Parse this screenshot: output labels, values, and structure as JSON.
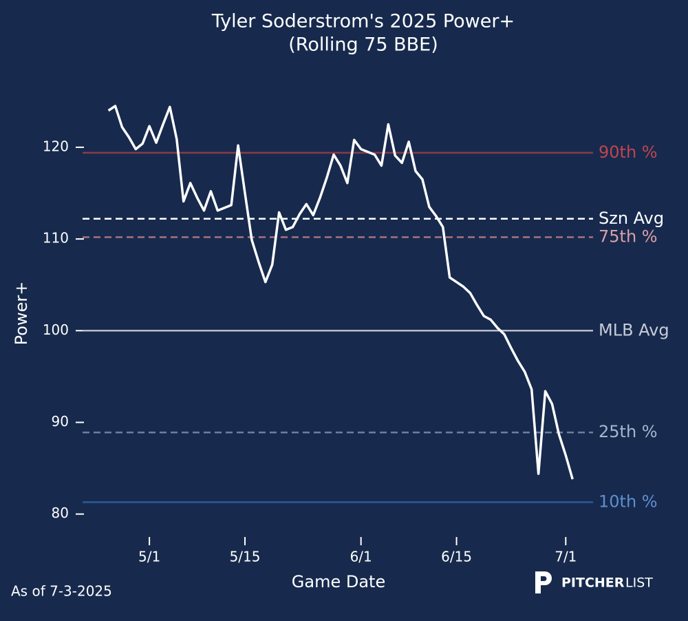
{
  "chart_data": {
    "type": "line",
    "title": "Tyler Soderstrom's 2025 Power+",
    "subtitle": "(Rolling 75 BBE)",
    "x_label": "Game Date",
    "y_label": "Power+",
    "footnote": "As of 7-3-2025",
    "logo": {
      "bold": "PITCHER",
      "light": "LIST"
    },
    "x": [
      "4/25",
      "4/26",
      "4/27",
      "4/28",
      "4/29",
      "4/30",
      "5/1",
      "5/2",
      "5/3",
      "5/4",
      "5/5",
      "5/6",
      "5/7",
      "5/8",
      "5/9",
      "5/10",
      "5/11",
      "5/13",
      "5/14",
      "5/15",
      "5/16",
      "5/17",
      "5/18",
      "5/19",
      "5/20",
      "5/21",
      "5/22",
      "5/23",
      "5/24",
      "5/25",
      "5/26",
      "5/27",
      "5/28",
      "5/29",
      "5/30",
      "5/31",
      "6/1",
      "6/2",
      "6/3",
      "6/4",
      "6/5",
      "6/6",
      "6/7",
      "6/8",
      "6/9",
      "6/10",
      "6/11",
      "6/12",
      "6/13",
      "6/14",
      "6/15",
      "6/16",
      "6/17",
      "6/18",
      "6/19",
      "6/20",
      "6/21",
      "6/22",
      "6/23",
      "6/24",
      "6/25",
      "6/26",
      "6/27",
      "6/28",
      "6/29",
      "6/30",
      "7/1",
      "7/2"
    ],
    "series": [
      {
        "name": "Power+",
        "color": "#ffffff",
        "values": [
          124.0,
          124.5,
          122.2,
          121.1,
          119.8,
          120.4,
          122.3,
          120.5,
          122.5,
          124.4,
          120.9,
          114.1,
          116.1,
          114.5,
          113.1,
          115.2,
          113.1,
          113.7,
          120.2,
          115.0,
          109.9,
          107.5,
          105.3,
          107.2,
          112.9,
          111.0,
          111.3,
          112.7,
          113.8,
          112.6,
          114.5,
          116.7,
          119.2,
          118.0,
          116.1,
          120.8,
          119.8,
          119.5,
          119.2,
          118.0,
          122.5,
          119.1,
          118.3,
          120.6,
          117.4,
          116.5,
          113.5,
          112.5,
          111.3,
          105.8,
          105.3,
          104.8,
          104.1,
          102.8,
          101.6,
          101.2,
          100.3,
          99.6,
          98.1,
          96.7,
          95.5,
          93.6,
          84.4,
          93.4,
          92.0,
          88.7,
          86.4,
          83.8
        ]
      }
    ],
    "references": [
      {
        "name": "90th %",
        "value": 119.4,
        "color": "#8b3a4a",
        "label_color": "#c0454f",
        "dashed": false
      },
      {
        "name": "Szn Avg",
        "value": 112.2,
        "color": "#ffffff",
        "label_color": "#ffffff",
        "dashed": true
      },
      {
        "name": "75th %",
        "value": 110.2,
        "color": "#a9737f",
        "label_color": "#d9a0a8",
        "dashed": true
      },
      {
        "name": "MLB Avg",
        "value": 100,
        "color": "#b8bcc8",
        "label_color": "#c8ccd8",
        "dashed": false
      },
      {
        "name": "25th %",
        "value": 88.9,
        "color": "#6c7fa0",
        "label_color": "#a7b6d0",
        "dashed": true
      },
      {
        "name": "10th %",
        "value": 81.3,
        "color": "#2d5a9a",
        "label_color": "#5f8fd0",
        "dashed": false
      }
    ],
    "xlim": [
      "4/20",
      "7/5"
    ],
    "xticks": [
      "5/1",
      "5/15",
      "6/1",
      "6/15",
      "7/1"
    ],
    "ylim": [
      79,
      126
    ],
    "yticks": [
      80,
      90,
      100,
      110,
      120
    ]
  }
}
